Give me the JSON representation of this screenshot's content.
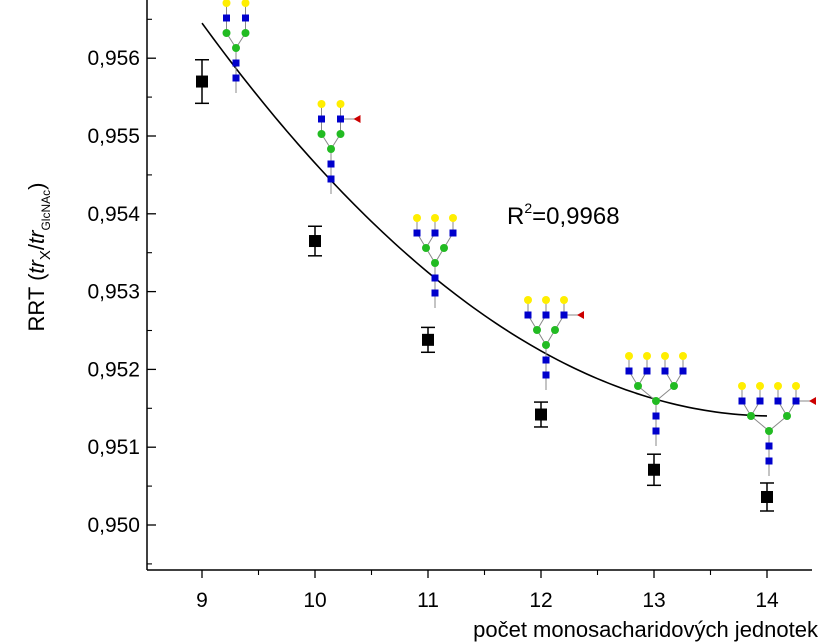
{
  "chart_data": {
    "type": "scatter",
    "title": "",
    "xlabel": "počet monosacharidových jednotek",
    "ylabel": {
      "prefix": "RRT (",
      "t1": "t",
      "r1": "r",
      "sub1": "X",
      "slash": "/",
      "t2": "t",
      "r2": "r",
      "sub2": "GlcNAc",
      "suffix": ")"
    },
    "x_ticks": [
      "9",
      "10",
      "11",
      "12",
      "13",
      "14"
    ],
    "y_ticks": [
      "0,950",
      "0,951",
      "0,952",
      "0,953",
      "0,954",
      "0,955",
      "0,956"
    ],
    "xlim": [
      8.6,
      14.5
    ],
    "ylim": [
      0.9495,
      0.9566
    ],
    "annotation": {
      "base": "R",
      "sup": "2",
      "rest": "=0,9968"
    },
    "series": [
      {
        "x": [
          9,
          10,
          11,
          12,
          13,
          14
        ],
        "y": [
          0.9557,
          0.95365,
          0.95238,
          0.95142,
          0.95071,
          0.95036
        ],
        "error": [
          0.00028,
          0.00019,
          0.00016,
          0.00016,
          0.0002,
          0.00018
        ]
      }
    ],
    "fit_curve": {
      "type": "quadratic",
      "a": 0.0001973,
      "b": -0.0055478,
      "c": 0.9904
    },
    "marker_color": "#000000",
    "glycan_colors": {
      "galactose": "#ffee00",
      "glcnac": "#0000cc",
      "mannose": "#22bb22",
      "fucose": "#cc0000"
    },
    "glycans": [
      {
        "x": 9,
        "galactose": 2,
        "glcnac": 4,
        "mannose": 3,
        "fucose": 0,
        "antennae": 2
      },
      {
        "x": 10,
        "galactose": 2,
        "glcnac": 4,
        "mannose": 3,
        "fucose": 1,
        "antennae": 2
      },
      {
        "x": 11,
        "galactose": 3,
        "glcnac": 5,
        "mannose": 3,
        "fucose": 0,
        "antennae": 3
      },
      {
        "x": 12,
        "galactose": 3,
        "glcnac": 5,
        "mannose": 3,
        "fucose": 1,
        "antennae": 3
      },
      {
        "x": 13,
        "galactose": 4,
        "glcnac": 6,
        "mannose": 3,
        "fucose": 0,
        "antennae": 4
      },
      {
        "x": 14,
        "galactose": 4,
        "glcnac": 6,
        "mannose": 3,
        "fucose": 1,
        "antennae": 4
      }
    ]
  }
}
